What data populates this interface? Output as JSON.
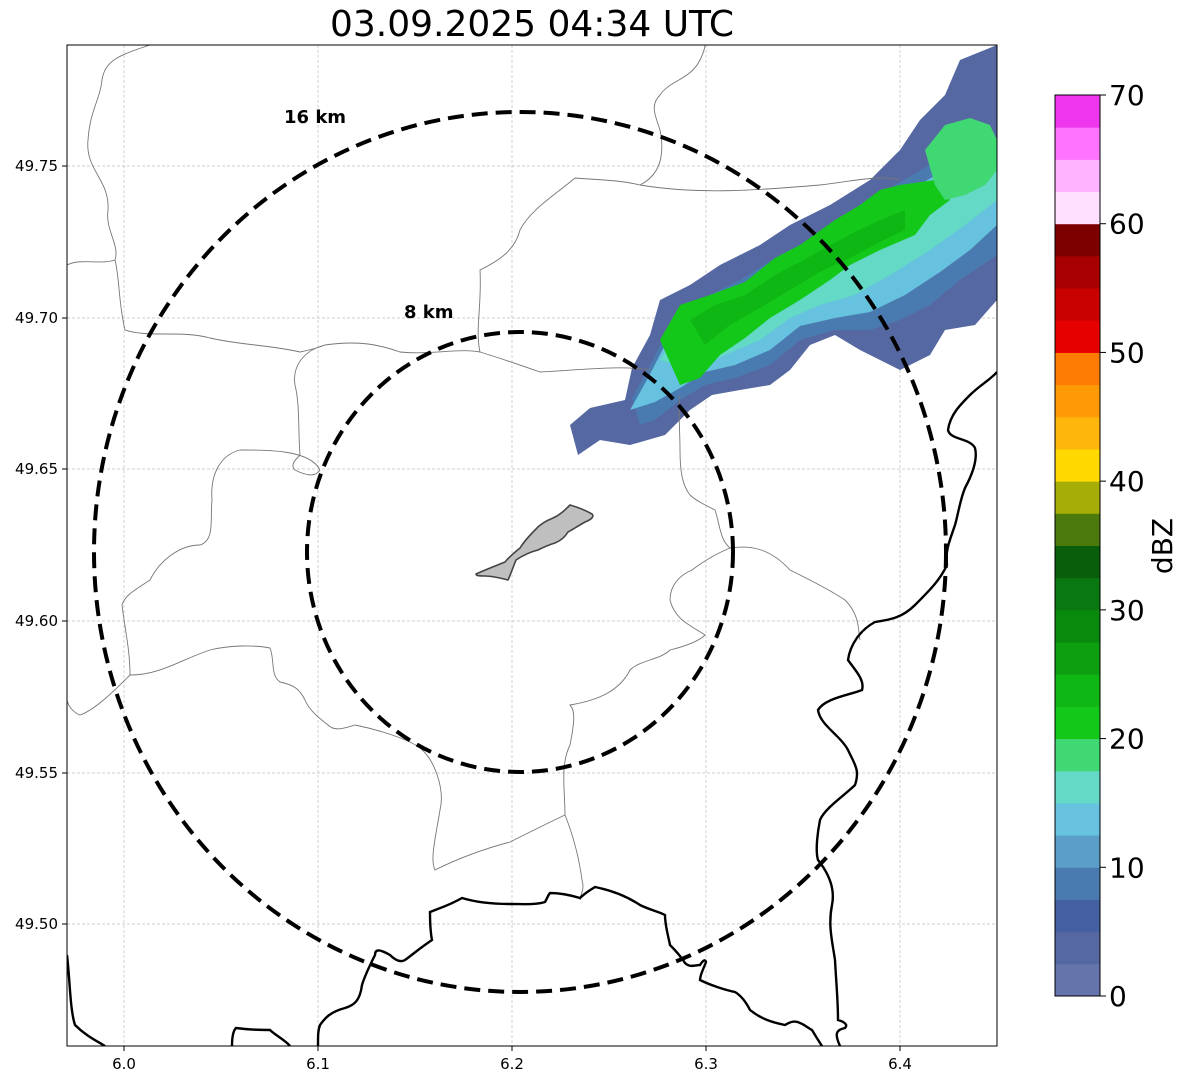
{
  "title": "03.09.2025 04:34 UTC",
  "map": {
    "lon_range": [
      5.97,
      6.45
    ],
    "lat_range": [
      49.46,
      49.79
    ],
    "x_ticks": [
      "6.0",
      "6.1",
      "6.2",
      "6.3",
      "6.4"
    ],
    "y_ticks": [
      "49.50",
      "49.55",
      "49.60",
      "49.65",
      "49.70",
      "49.75"
    ],
    "gridlines": true,
    "rings": [
      {
        "label": "8 km"
      },
      {
        "label": "16 km"
      }
    ]
  },
  "colorbar": {
    "unit": "dBZ",
    "min": 0,
    "max": 70,
    "tick_labels": [
      "0",
      "10",
      "20",
      "30",
      "40",
      "50",
      "60",
      "70"
    ],
    "colors": [
      "#6574ab",
      "#5568a1",
      "#4560a1",
      "#4a7bb0",
      "#5b9fc9",
      "#66c2de",
      "#64d9c5",
      "#40d873",
      "#14c81a",
      "#0fb714",
      "#0d9f10",
      "#0a8a0d",
      "#097810",
      "#085e0b",
      "#4b790b",
      "#a6ad06",
      "#ffd900",
      "#feb60c",
      "#fe9a05",
      "#fe7c03",
      "#e60000",
      "#c90000",
      "#a80000",
      "#7c0000",
      "#ffe1ff",
      "#ffb3ff",
      "#ff73ff",
      "#ef36ef"
    ]
  },
  "legend": {
    "location": "right"
  }
}
